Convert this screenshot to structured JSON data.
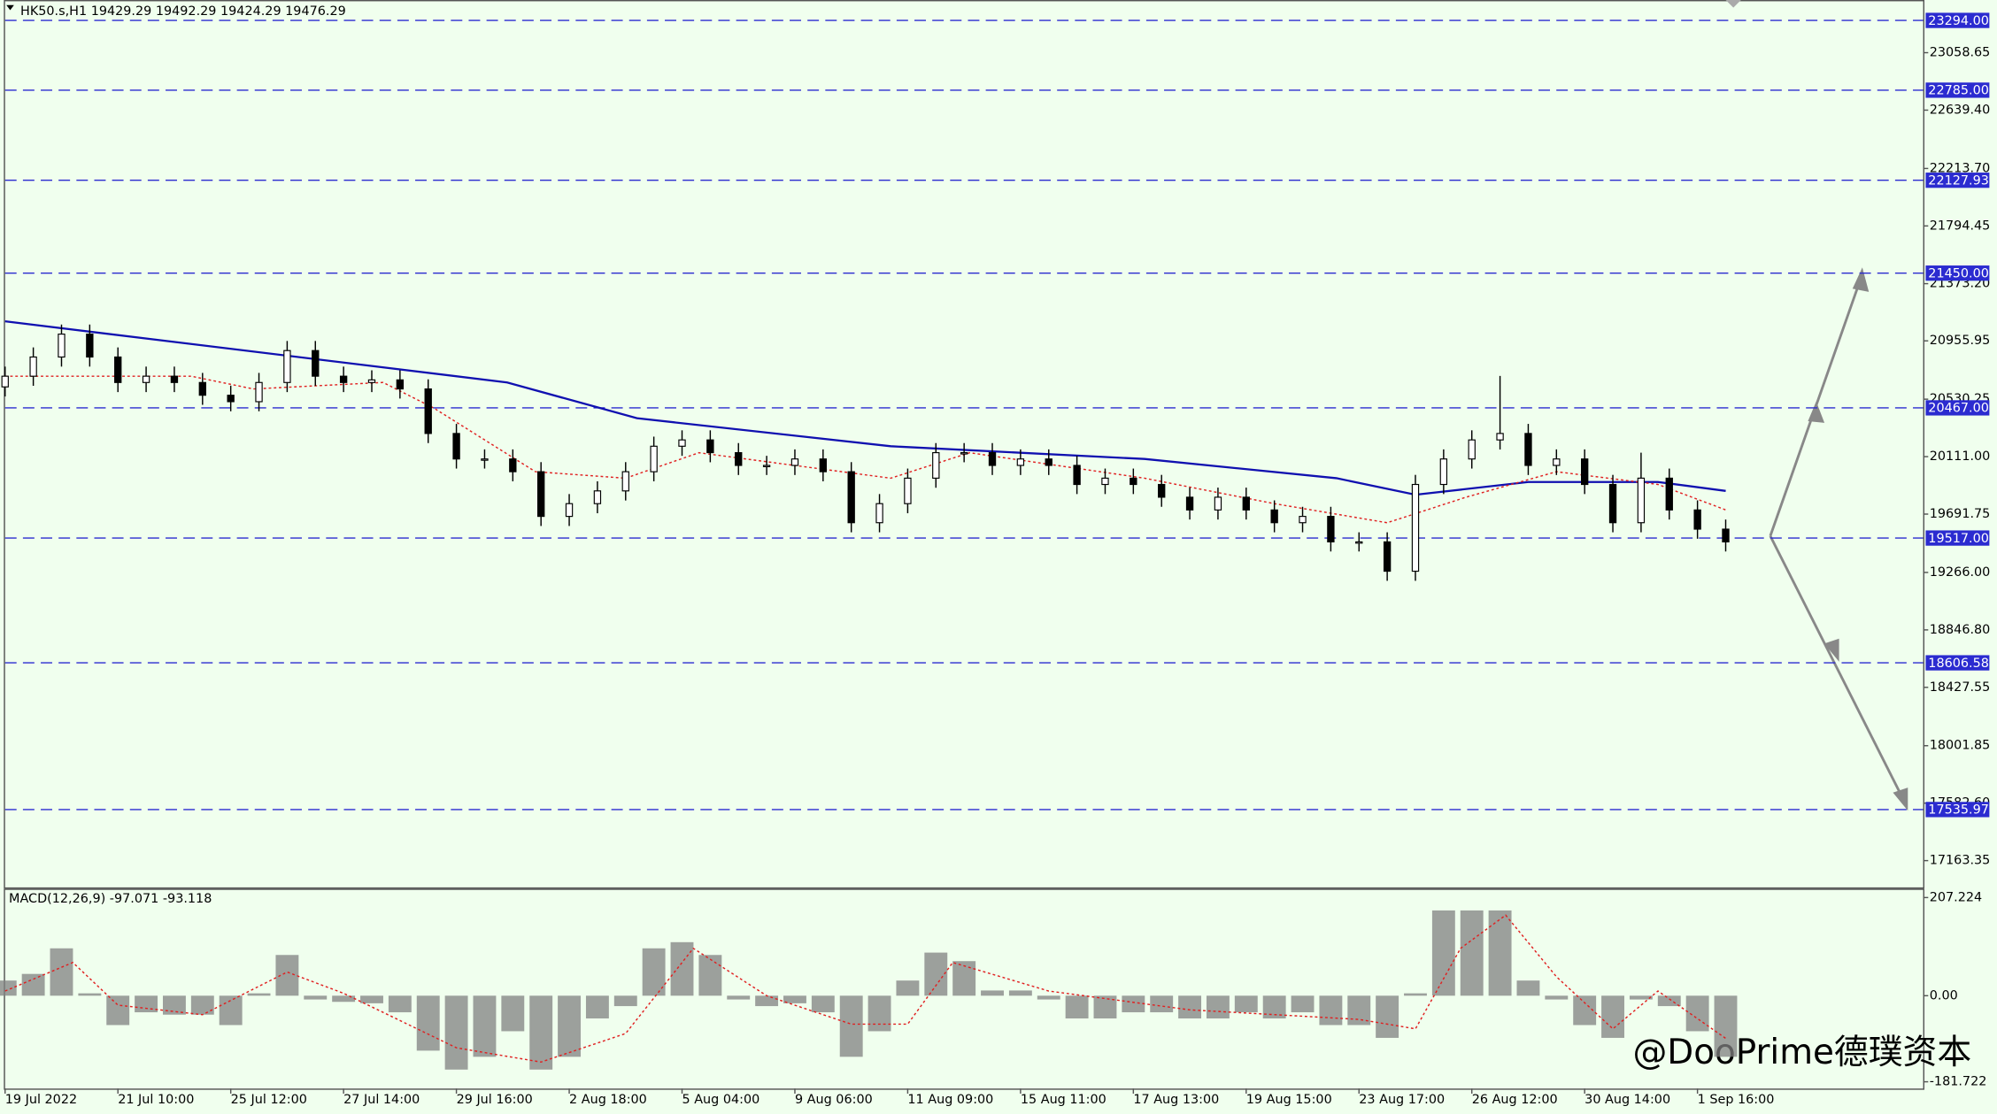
{
  "chart_data": [
    {
      "type": "candlestick",
      "header": "HK50.s,H1  19429.29 19492.29 19424.29 19476.29",
      "xlim": [
        0,
        340
      ],
      "ylim": [
        16968,
        23443
      ],
      "xticks": [
        {
          "value": 0,
          "label": "19 Jul 2022"
        },
        {
          "value": 20,
          "label": "21 Jul 10:00"
        },
        {
          "value": 40,
          "label": "25 Jul 12:00"
        },
        {
          "value": 60,
          "label": "27 Jul 14:00"
        },
        {
          "value": 80,
          "label": "29 Jul 16:00"
        },
        {
          "value": 100,
          "label": "2 Aug 18:00"
        },
        {
          "value": 120,
          "label": "5 Aug 04:00"
        },
        {
          "value": 140,
          "label": "9 Aug 06:00"
        },
        {
          "value": 160,
          "label": "11 Aug 09:00"
        },
        {
          "value": 180,
          "label": "15 Aug 11:00"
        },
        {
          "value": 200,
          "label": "17 Aug 13:00"
        },
        {
          "value": 220,
          "label": "19 Aug 15:00"
        },
        {
          "value": 240,
          "label": "23 Aug 17:00"
        },
        {
          "value": 260,
          "label": "26 Aug 12:00"
        },
        {
          "value": 280,
          "label": "30 Aug 14:00"
        },
        {
          "value": 300,
          "label": "1 Sep 16:00"
        }
      ],
      "yticks": [
        {
          "value": 23058.65,
          "label": "23058.65"
        },
        {
          "value": 22639.4,
          "label": "22639.40"
        },
        {
          "value": 22213.7,
          "label": "22213.70"
        },
        {
          "value": 21794.45,
          "label": "21794.45"
        },
        {
          "value": 21373.2,
          "label": "21373.20"
        },
        {
          "value": 20955.95,
          "label": "20955.95"
        },
        {
          "value": 20530.25,
          "label": "20530.25"
        },
        {
          "value": 20111,
          "label": "20111.00"
        },
        {
          "value": 19691.75,
          "label": "19691.75"
        },
        {
          "value": 19266,
          "label": "19266.00"
        },
        {
          "value": 18846.8,
          "label": "18846.80"
        },
        {
          "value": 18427.55,
          "label": "18427.55"
        },
        {
          "value": 18001.85,
          "label": "18001.85"
        },
        {
          "value": 17582.6,
          "label": "17582.60"
        },
        {
          "value": 17163.35,
          "label": "17163.35"
        }
      ],
      "levels": [
        {
          "value": 23294,
          "label": "23294.00"
        },
        {
          "value": 22785,
          "label": "22785.00"
        },
        {
          "value": 22127.93,
          "label": "22127.93"
        },
        {
          "value": 21450,
          "label": "21450.00"
        },
        {
          "value": 20467,
          "label": "20467.00"
        },
        {
          "value": 19517,
          "label": "19517.00"
        },
        {
          "value": 18606.58,
          "label": "18606.58"
        },
        {
          "value": 17535.97,
          "label": "17535.97"
        }
      ],
      "level_color": "#2b2bd0",
      "x": [
        0,
        5,
        10,
        15,
        20,
        25,
        30,
        35,
        40,
        45,
        50,
        55,
        60,
        65,
        70,
        75,
        80,
        85,
        90,
        95,
        100,
        105,
        110,
        115,
        120,
        125,
        130,
        135,
        140,
        145,
        150,
        155,
        160,
        165,
        170,
        175,
        180,
        185,
        190,
        195,
        200,
        205,
        210,
        215,
        220,
        225,
        230,
        235,
        240,
        245,
        250,
        255,
        260,
        265,
        270,
        275,
        280,
        285,
        290,
        295,
        300,
        305
      ],
      "open": [
        20620,
        20698,
        20838,
        21005,
        20838,
        20652,
        20698,
        20652,
        20559,
        20512,
        20652,
        20885,
        20698,
        20652,
        20671,
        20605,
        20280,
        20094,
        20094,
        20001,
        19675,
        19768,
        19861,
        20001,
        20187,
        20233,
        20140,
        20047,
        20047,
        20094,
        20001,
        19629,
        19768,
        19954,
        20140,
        20140,
        20047,
        20094,
        20047,
        19908,
        19954,
        19908,
        19815,
        19722,
        19815,
        19722,
        19629,
        19675,
        19489,
        19489,
        19275,
        19908,
        20094,
        20233,
        20280,
        20047,
        20094,
        19908,
        19629,
        19954,
        19722,
        19582
      ],
      "high": [
        20768,
        20908,
        21075,
        21075,
        20908,
        20768,
        20768,
        20722,
        20629,
        20722,
        20955,
        20955,
        20768,
        20741,
        20741,
        20675,
        20350,
        20164,
        20164,
        20071,
        19838,
        19931,
        20071,
        20257,
        20303,
        20303,
        20210,
        20117,
        20164,
        20164,
        20071,
        19838,
        20024,
        20210,
        20210,
        20210,
        20164,
        20164,
        20117,
        20024,
        20024,
        19978,
        19885,
        19885,
        19885,
        19792,
        19745,
        19745,
        19559,
        19559,
        19978,
        20164,
        20303,
        20700,
        20350,
        20164,
        20164,
        19978,
        20140,
        20024,
        19792,
        19652
      ],
      "low": [
        20550,
        20628,
        20768,
        20768,
        20582,
        20582,
        20582,
        20489,
        20442,
        20442,
        20582,
        20628,
        20582,
        20582,
        20535,
        20210,
        20024,
        20024,
        19931,
        19605,
        19605,
        19698,
        19791,
        19931,
        20117,
        20070,
        19977,
        19977,
        19977,
        19931,
        19559,
        19559,
        19698,
        19884,
        20070,
        19977,
        19977,
        19977,
        19838,
        19838,
        19838,
        19745,
        19652,
        19652,
        19652,
        19559,
        19559,
        19419,
        19419,
        19205,
        19205,
        19838,
        20024,
        20163,
        19977,
        19977,
        19838,
        19559,
        19559,
        19652,
        19512,
        19419
      ],
      "close": [
        20698,
        20838,
        21005,
        20838,
        20652,
        20698,
        20652,
        20559,
        20512,
        20652,
        20885,
        20698,
        20652,
        20671,
        20605,
        20280,
        20094,
        20094,
        20001,
        19675,
        19768,
        19861,
        20001,
        20187,
        20233,
        20140,
        20047,
        20047,
        20094,
        20001,
        19629,
        19768,
        19954,
        20140,
        20140,
        20047,
        20094,
        20047,
        19908,
        19954,
        19908,
        19815,
        19722,
        19815,
        19722,
        19629,
        19675,
        19489,
        19489,
        19275,
        19908,
        20094,
        20233,
        20280,
        20047,
        20094,
        19908,
        19629,
        19954,
        19722,
        19582,
        19489
      ],
      "lines": [
        {
          "color": "#1010b0",
          "x": [
            0,
            89,
            112,
            157,
            202,
            236,
            250,
            270,
            293,
            305
          ],
          "values": [
            21098,
            20652,
            20391,
            20187,
            20094,
            19954,
            19833,
            19926,
            19926,
            19861
          ]
        },
        {
          "color": "#e02020",
          "dashed": true,
          "x": [
            0,
            33,
            44,
            67,
            76,
            94,
            110,
            123,
            157,
            171,
            202,
            225,
            245,
            259,
            275,
            293,
            305
          ],
          "values": [
            20698,
            20698,
            20605,
            20652,
            20466,
            20001,
            19954,
            20140,
            19954,
            20140,
            19954,
            19768,
            19629,
            19815,
            20001,
            19908,
            19722
          ]
        }
      ]
    },
    {
      "type": "histogram-line",
      "header": "MACD(12,26,9) -97.071 -93.118",
      "xlim": [
        0,
        340
      ],
      "ylim": [
        -196,
        226
      ],
      "yticks": [
        {
          "value": 207.224,
          "label": "207.224"
        },
        {
          "value": 0,
          "label": "0.00"
        },
        {
          "value": -181.722,
          "label": "-181.722"
        }
      ],
      "color": "#808080",
      "x": [
        0,
        5,
        10,
        15,
        20,
        25,
        30,
        35,
        40,
        45,
        50,
        55,
        60,
        65,
        70,
        75,
        80,
        85,
        90,
        95,
        100,
        105,
        110,
        115,
        120,
        125,
        130,
        135,
        140,
        145,
        150,
        155,
        160,
        165,
        170,
        175,
        180,
        185,
        190,
        195,
        200,
        205,
        210,
        215,
        220,
        225,
        230,
        235,
        240,
        245,
        250,
        255,
        260,
        265,
        270,
        275,
        280,
        285,
        290,
        295,
        300,
        305
      ],
      "values": [
        32,
        46,
        100,
        5,
        -62,
        -35,
        -40,
        -40,
        -62,
        5,
        86,
        -8,
        -13,
        -16,
        -35,
        -116,
        -156,
        -129,
        -75,
        -156,
        -129,
        -48,
        -22,
        100,
        113,
        86,
        -8,
        -22,
        -16,
        -35,
        -129,
        -75,
        32,
        91,
        73,
        11,
        11,
        -8,
        -48,
        -48,
        -35,
        -35,
        -48,
        -48,
        -35,
        -48,
        -35,
        -62,
        -62,
        -89,
        5,
        180,
        180,
        180,
        32,
        -8,
        -62,
        -89,
        -8,
        -22,
        -75,
        -129
      ],
      "signal": {
        "color": "#e02020",
        "x": [
          0,
          12,
          20,
          35,
          50,
          60,
          80,
          95,
          110,
          122,
          135,
          150,
          160,
          168,
          185,
          210,
          240,
          250,
          258,
          266,
          275,
          285,
          293,
          305
        ],
        "values": [
          10,
          70,
          -20,
          -40,
          50,
          5,
          -110,
          -140,
          -80,
          100,
          0,
          -60,
          -60,
          70,
          10,
          -30,
          -50,
          -70,
          100,
          170,
          40,
          -70,
          10,
          -90
        ]
      }
    }
  ],
  "watermark": "@DooPrime德璞资本"
}
